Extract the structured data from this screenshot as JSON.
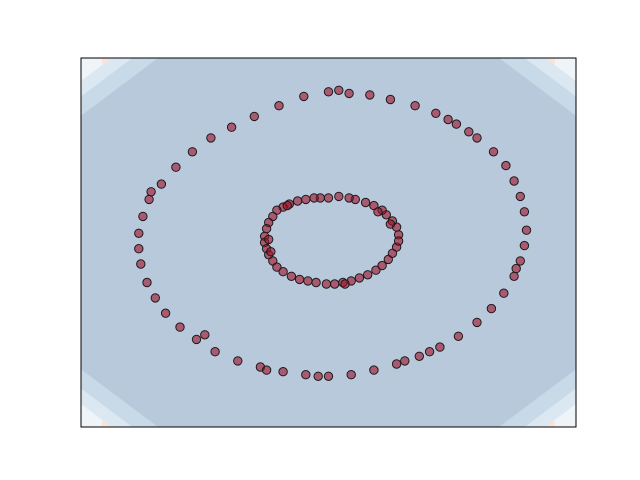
{
  "chart_data": {
    "type": "scatter",
    "title": "",
    "xlabel": "",
    "ylabel": "",
    "xticks": [],
    "yticks": [],
    "xlim": [
      -1.2,
      1.2
    ],
    "ylim": [
      -1.2,
      1.2
    ],
    "grid": false,
    "legend": "none",
    "background_contour": {
      "type": "filled-contour",
      "levels": [
        0.0,
        0.1,
        0.2,
        0.3,
        0.4,
        0.5
      ],
      "colors": [
        "#b8c9dc",
        "#c8d9e8",
        "#dbe8f2",
        "#eef4f8",
        "#fbe3d8",
        "#f4c0a8"
      ]
    },
    "point_style": {
      "fill": "#a01028",
      "fill_opacity": 0.6,
      "edge": "#1a1a1a"
    },
    "series": [
      {
        "points": [
          [
            0.34,
            0.05
          ],
          [
            0.33,
            0.1
          ],
          [
            0.31,
            0.14
          ],
          [
            0.28,
            0.18
          ],
          [
            0.26,
            0.21
          ],
          [
            0.22,
            0.24
          ],
          [
            0.18,
            0.26
          ],
          [
            0.13,
            0.28
          ],
          [
            0.1,
            0.29
          ],
          [
            0.05,
            0.3
          ],
          [
            0.0,
            0.29
          ],
          [
            -0.04,
            0.29
          ],
          [
            -0.07,
            0.29
          ],
          [
            -0.11,
            0.28
          ],
          [
            -0.15,
            0.27
          ],
          [
            -0.19,
            0.25
          ],
          [
            -0.22,
            0.23
          ],
          [
            -0.25,
            0.21
          ],
          [
            -0.27,
            0.17
          ],
          [
            -0.29,
            0.13
          ],
          [
            -0.3,
            0.09
          ],
          [
            -0.31,
            0.04
          ],
          [
            -0.31,
            0.0
          ],
          [
            -0.3,
            -0.04
          ],
          [
            -0.29,
            -0.08
          ],
          [
            -0.27,
            -0.12
          ],
          [
            -0.25,
            -0.16
          ],
          [
            -0.22,
            -0.19
          ],
          [
            -0.18,
            -0.22
          ],
          [
            -0.14,
            -0.24
          ],
          [
            -0.1,
            -0.25
          ],
          [
            -0.06,
            -0.26
          ],
          [
            -0.01,
            -0.27
          ],
          [
            0.03,
            -0.27
          ],
          [
            0.07,
            -0.26
          ],
          [
            0.11,
            -0.25
          ],
          [
            0.15,
            -0.23
          ],
          [
            0.19,
            -0.21
          ],
          [
            0.23,
            -0.18
          ],
          [
            0.26,
            -0.15
          ],
          [
            0.29,
            -0.11
          ],
          [
            0.31,
            -0.07
          ],
          [
            0.33,
            -0.03
          ],
          [
            0.34,
            0.01
          ],
          [
            -0.29,
            0.02
          ],
          [
            -0.28,
            -0.06
          ],
          [
            0.3,
            0.12
          ],
          [
            0.24,
            0.2
          ],
          [
            -0.2,
            0.24
          ],
          [
            0.08,
            -0.27
          ]
        ]
      },
      {
        "points": [
          [
            0.0,
            0.98
          ],
          [
            0.1,
            0.97
          ],
          [
            0.2,
            0.96
          ],
          [
            0.3,
            0.93
          ],
          [
            0.42,
            0.89
          ],
          [
            0.52,
            0.84
          ],
          [
            0.62,
            0.77
          ],
          [
            0.72,
            0.68
          ],
          [
            0.8,
            0.59
          ],
          [
            0.86,
            0.5
          ],
          [
            0.9,
            0.4
          ],
          [
            0.93,
            0.3
          ],
          [
            0.95,
            0.2
          ],
          [
            0.96,
            0.08
          ],
          [
            0.95,
            -0.02
          ],
          [
            0.93,
            -0.12
          ],
          [
            0.9,
            -0.22
          ],
          [
            0.85,
            -0.33
          ],
          [
            0.79,
            -0.43
          ],
          [
            0.72,
            -0.52
          ],
          [
            0.63,
            -0.61
          ],
          [
            0.54,
            -0.68
          ],
          [
            0.44,
            -0.74
          ],
          [
            0.33,
            -0.79
          ],
          [
            0.22,
            -0.83
          ],
          [
            0.11,
            -0.86
          ],
          [
            0.0,
            -0.87
          ],
          [
            -0.11,
            -0.86
          ],
          [
            -0.22,
            -0.84
          ],
          [
            -0.33,
            -0.81
          ],
          [
            -0.44,
            -0.77
          ],
          [
            -0.55,
            -0.71
          ],
          [
            -0.64,
            -0.63
          ],
          [
            -0.72,
            -0.55
          ],
          [
            -0.79,
            -0.46
          ],
          [
            -0.84,
            -0.36
          ],
          [
            -0.88,
            -0.26
          ],
          [
            -0.91,
            -0.14
          ],
          [
            -0.92,
            -0.04
          ],
          [
            -0.92,
            0.06
          ],
          [
            -0.9,
            0.17
          ],
          [
            -0.87,
            0.28
          ],
          [
            -0.81,
            0.38
          ],
          [
            -0.74,
            0.49
          ],
          [
            -0.66,
            0.59
          ],
          [
            -0.57,
            0.68
          ],
          [
            -0.47,
            0.75
          ],
          [
            -0.36,
            0.82
          ],
          [
            -0.24,
            0.89
          ],
          [
            -0.12,
            0.95
          ],
          [
            0.05,
            0.99
          ],
          [
            0.58,
            0.8
          ],
          [
            0.91,
            -0.17
          ],
          [
            -0.6,
            -0.6
          ],
          [
            -0.3,
            -0.83
          ],
          [
            0.37,
            -0.77
          ],
          [
            -0.86,
            0.33
          ],
          [
            0.68,
            0.72
          ],
          [
            -0.05,
            -0.87
          ],
          [
            0.49,
            -0.71
          ]
        ]
      }
    ]
  }
}
